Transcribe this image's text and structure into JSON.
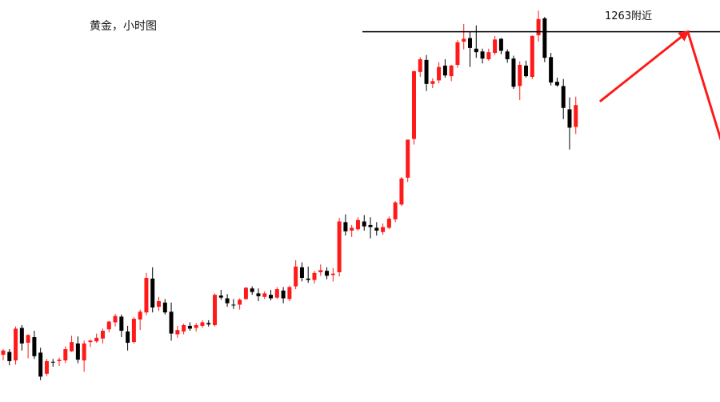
{
  "chart_data": {
    "type": "candlestick",
    "title": "黄金，小时图",
    "xlabel": "",
    "ylabel": "",
    "ylim": [
      1210.5,
      1267.5
    ],
    "grid": false,
    "legend": "none",
    "colors": {
      "up": "#ff1a1a",
      "down": "#000000",
      "annotation": "#ff1a1a",
      "level": "#000000"
    },
    "candles": [
      [
        1217.2,
        1218.0,
        1216.4,
        1217.8
      ],
      [
        1217.6,
        1218.0,
        1215.7,
        1216.3
      ],
      [
        1216.4,
        1221.2,
        1215.8,
        1220.9
      ],
      [
        1221.0,
        1221.4,
        1217.8,
        1218.8
      ],
      [
        1218.9,
        1220.1,
        1216.7,
        1220.0
      ],
      [
        1219.7,
        1220.6,
        1216.6,
        1217.0
      ],
      [
        1217.5,
        1218.2,
        1213.6,
        1214.1
      ],
      [
        1214.5,
        1216.6,
        1214.2,
        1216.3
      ],
      [
        1216.2,
        1216.6,
        1215.5,
        1216.1
      ],
      [
        1216.3,
        1216.8,
        1215.6,
        1216.5
      ],
      [
        1216.4,
        1218.4,
        1216.0,
        1218.0
      ],
      [
        1217.7,
        1219.9,
        1217.6,
        1219.0
      ],
      [
        1218.8,
        1219.8,
        1216.0,
        1216.5
      ],
      [
        1216.4,
        1219.2,
        1214.8,
        1218.8
      ],
      [
        1219.0,
        1219.4,
        1218.3,
        1219.2
      ],
      [
        1219.1,
        1220.2,
        1218.9,
        1219.6
      ],
      [
        1219.5,
        1220.9,
        1218.8,
        1220.6
      ],
      [
        1220.8,
        1222.0,
        1220.4,
        1221.9
      ],
      [
        1221.8,
        1223.0,
        1221.2,
        1222.7
      ],
      [
        1222.6,
        1222.9,
        1219.7,
        1220.6
      ],
      [
        1220.5,
        1221.3,
        1217.8,
        1218.9
      ],
      [
        1219.0,
        1222.5,
        1218.8,
        1222.3
      ],
      [
        1222.2,
        1223.6,
        1220.7,
        1223.3
      ],
      [
        1223.2,
        1228.8,
        1222.8,
        1228.1
      ],
      [
        1228.0,
        1229.6,
        1223.2,
        1223.9
      ],
      [
        1224.0,
        1225.4,
        1223.4,
        1224.8
      ],
      [
        1224.6,
        1225.1,
        1222.9,
        1223.2
      ],
      [
        1223.3,
        1224.6,
        1219.2,
        1220.2
      ],
      [
        1220.1,
        1221.3,
        1219.6,
        1220.7
      ],
      [
        1220.5,
        1221.6,
        1220.1,
        1221.4
      ],
      [
        1221.3,
        1221.8,
        1220.6,
        1220.9
      ],
      [
        1221.0,
        1221.7,
        1220.5,
        1221.4
      ],
      [
        1221.3,
        1222.1,
        1221.0,
        1221.8
      ],
      [
        1221.7,
        1222.1,
        1221.2,
        1221.5
      ],
      [
        1221.4,
        1225.9,
        1221.2,
        1225.7
      ],
      [
        1225.6,
        1226.4,
        1225.0,
        1225.3
      ],
      [
        1225.2,
        1225.8,
        1224.0,
        1224.5
      ],
      [
        1224.3,
        1225.1,
        1223.7,
        1224.2
      ],
      [
        1224.3,
        1225.2,
        1223.6,
        1225.0
      ],
      [
        1225.1,
        1226.8,
        1225.0,
        1226.7
      ],
      [
        1226.6,
        1226.9,
        1225.7,
        1226.1
      ],
      [
        1225.9,
        1226.6,
        1224.8,
        1225.5
      ],
      [
        1225.4,
        1226.2,
        1225.1,
        1225.9
      ],
      [
        1225.7,
        1226.4,
        1224.9,
        1225.2
      ],
      [
        1225.3,
        1226.8,
        1225.1,
        1226.5
      ],
      [
        1226.3,
        1226.8,
        1224.5,
        1225.2
      ],
      [
        1225.1,
        1227.0,
        1224.8,
        1226.8
      ],
      [
        1226.9,
        1230.6,
        1226.5,
        1229.7
      ],
      [
        1229.6,
        1230.3,
        1227.6,
        1228.1
      ],
      [
        1228.0,
        1229.7,
        1227.4,
        1227.8
      ],
      [
        1227.8,
        1229.1,
        1227.3,
        1228.8
      ],
      [
        1228.9,
        1230.0,
        1228.4,
        1229.2
      ],
      [
        1229.1,
        1229.6,
        1227.9,
        1228.4
      ],
      [
        1228.5,
        1229.5,
        1227.6,
        1228.7
      ],
      [
        1228.9,
        1236.6,
        1228.3,
        1236.1
      ],
      [
        1236.0,
        1237.1,
        1234.1,
        1234.7
      ],
      [
        1234.8,
        1235.6,
        1233.9,
        1235.2
      ],
      [
        1235.0,
        1236.7,
        1234.8,
        1236.3
      ],
      [
        1236.1,
        1237.0,
        1234.8,
        1235.4
      ],
      [
        1235.6,
        1236.7,
        1233.7,
        1235.3
      ],
      [
        1235.2,
        1236.0,
        1234.1,
        1234.8
      ],
      [
        1234.6,
        1235.8,
        1234.2,
        1235.3
      ],
      [
        1235.2,
        1236.8,
        1235.0,
        1236.5
      ],
      [
        1236.4,
        1239.0,
        1236.0,
        1238.8
      ],
      [
        1238.5,
        1242.4,
        1238.3,
        1242.2
      ],
      [
        1242.3,
        1247.7,
        1241.7,
        1247.7
      ],
      [
        1247.8,
        1257.5,
        1247.0,
        1257.4
      ],
      [
        1257.3,
        1259.4,
        1256.6,
        1259.1
      ],
      [
        1259.0,
        1259.7,
        1254.6,
        1255.6
      ],
      [
        1255.6,
        1256.4,
        1255.0,
        1256.0
      ],
      [
        1256.1,
        1258.7,
        1255.7,
        1258.0
      ],
      [
        1258.2,
        1259.1,
        1256.5,
        1256.8
      ],
      [
        1256.7,
        1258.3,
        1256.0,
        1258.2
      ],
      [
        1258.3,
        1261.8,
        1257.9,
        1261.5
      ],
      [
        1261.6,
        1264.1,
        1260.5,
        1262.0
      ],
      [
        1262.1,
        1263.0,
        1258.0,
        1260.7
      ],
      [
        1260.6,
        1263.9,
        1259.3,
        1260.1
      ],
      [
        1260.2,
        1260.6,
        1258.5,
        1259.2
      ],
      [
        1259.1,
        1260.6,
        1258.9,
        1260.1
      ],
      [
        1260.0,
        1262.4,
        1259.7,
        1261.9
      ],
      [
        1262.0,
        1262.1,
        1259.8,
        1260.3
      ],
      [
        1260.2,
        1260.5,
        1258.6,
        1259.1
      ],
      [
        1259.2,
        1259.6,
        1254.9,
        1255.2
      ],
      [
        1255.3,
        1258.8,
        1253.3,
        1258.3
      ],
      [
        1258.2,
        1258.9,
        1256.5,
        1256.7
      ],
      [
        1256.6,
        1262.5,
        1256.3,
        1262.4
      ],
      [
        1262.5,
        1266.0,
        1261.6,
        1264.8
      ],
      [
        1264.9,
        1265.1,
        1258.7,
        1259.3
      ],
      [
        1259.4,
        1260.0,
        1255.4,
        1255.8
      ],
      [
        1255.9,
        1256.5,
        1255.2,
        1255.4
      ],
      [
        1255.3,
        1256.3,
        1250.6,
        1252.2
      ],
      [
        1252.0,
        1253.7,
        1246.3,
        1249.4
      ],
      [
        1249.5,
        1253.8,
        1248.5,
        1252.6
      ]
    ],
    "resistance_level": 1263,
    "annotation_text": "1263附近",
    "projection": [
      [
        96,
        1253.2
      ],
      [
        110,
        1263.0
      ],
      [
        117,
        1242.8
      ]
    ]
  }
}
